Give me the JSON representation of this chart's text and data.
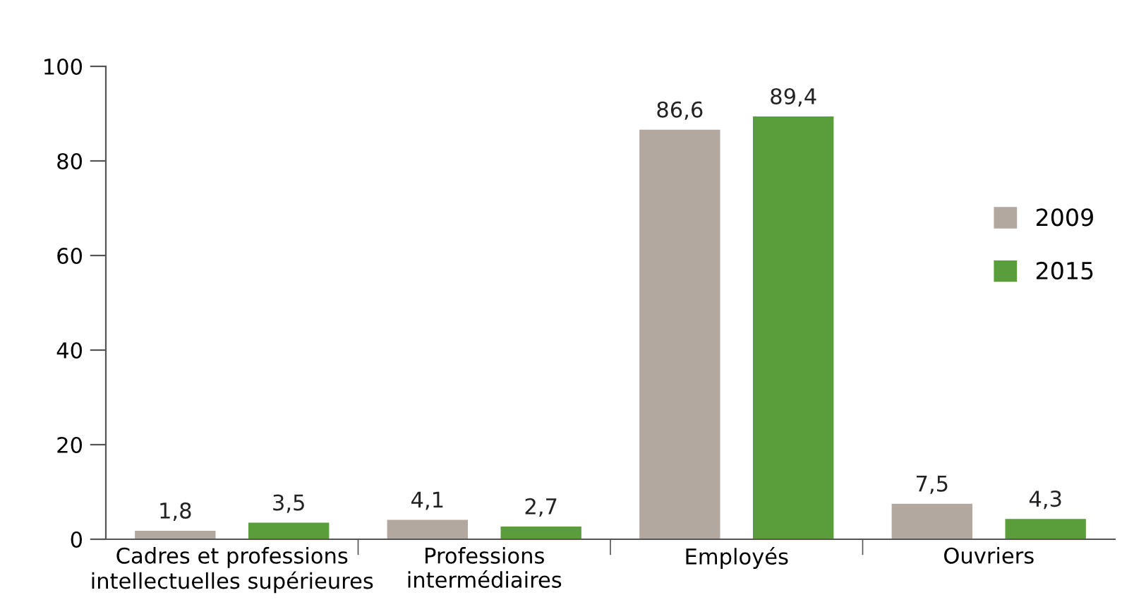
{
  "chart_data": {
    "type": "bar",
    "categories": [
      "Cadres et professions\nintellectuelles supérieures",
      "Professions\nintermédiaires",
      "Employés",
      "Ouvriers"
    ],
    "series": [
      {
        "name": "2009",
        "color": "#b3a89f",
        "values": [
          1.8,
          4.1,
          86.6,
          7.5
        ],
        "value_labels": [
          "1,8",
          "4,1",
          "86,6",
          "7,5"
        ]
      },
      {
        "name": "2015",
        "color": "#5a9e3c",
        "values": [
          3.5,
          2.7,
          89.4,
          4.3
        ],
        "value_labels": [
          "3,5",
          "2,7",
          "89,4",
          "4,3"
        ]
      }
    ],
    "ylim": [
      0,
      100
    ],
    "yticks": [
      0,
      20,
      40,
      60,
      80,
      100
    ],
    "grid": false,
    "legend": "right"
  }
}
